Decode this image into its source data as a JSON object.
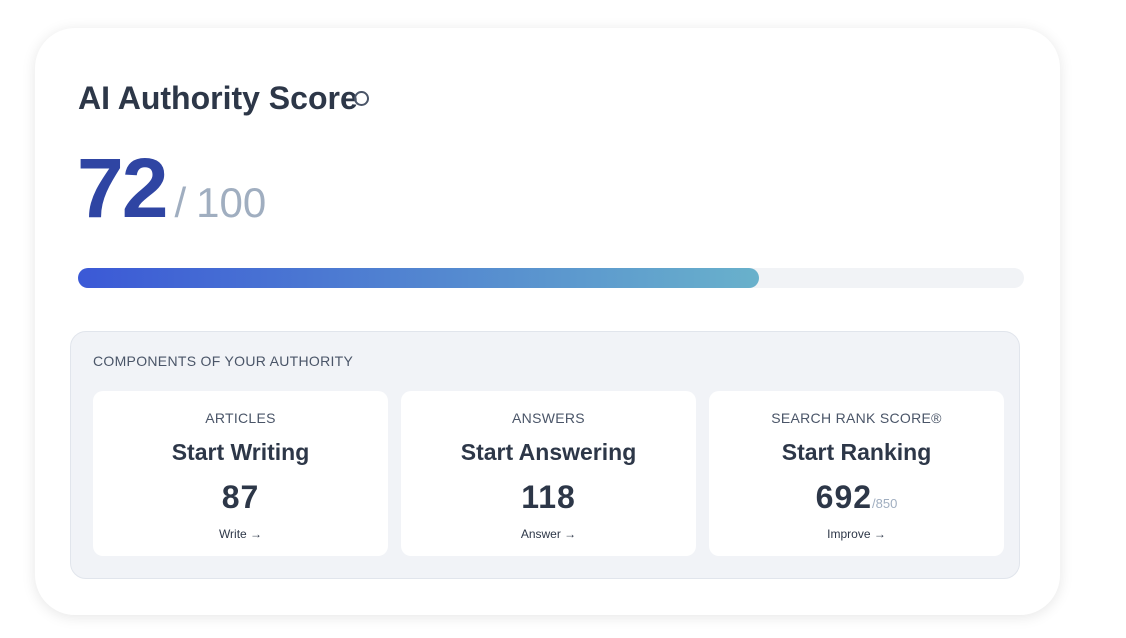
{
  "card": {
    "title": "AI Authority Score",
    "score": 72,
    "separator": "/",
    "max": 100,
    "components": {
      "heading": "COMPONENTS OF YOUR AUTHORITY",
      "items": [
        {
          "label": "ARTICLES",
          "title": "Start Writing",
          "value": 87,
          "link": "Write →"
        },
        {
          "label": "ANSWERS",
          "title": "Start Answering",
          "value": 118,
          "link": "Answer →"
        },
        {
          "label": "SEARCH RANK SCORE®",
          "title": "Start Ranking",
          "value": 692,
          "suffix": "/850",
          "link": "Improve →"
        }
      ]
    }
  }
}
